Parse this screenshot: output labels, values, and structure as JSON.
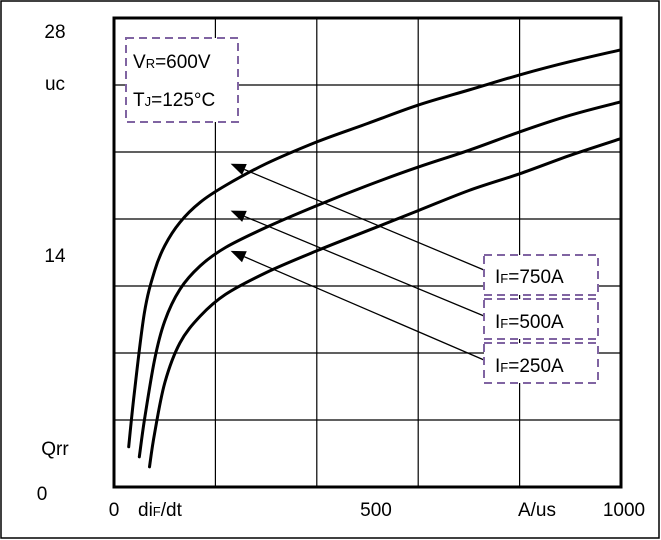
{
  "chart_data": {
    "type": "line",
    "xlabel": "diF/dt",
    "ylabel": "Qrr",
    "xlabel_parts": {
      "main": "di",
      "sub": "F",
      "rest": "/dt"
    },
    "x_unit": "A/us",
    "y_unit": "uc",
    "xlim": [
      0,
      1000
    ],
    "ylim": [
      0,
      28
    ],
    "x_tick_labels": [
      "0",
      "500",
      "1000"
    ],
    "y_tick_labels": [
      "0",
      "14",
      "28"
    ],
    "grid": true,
    "conditions": [
      {
        "id": "vr",
        "main": "V",
        "sub": "R",
        "rest": "=600V"
      },
      {
        "id": "tj",
        "main": "T",
        "sub": "J",
        "rest": "=125°C"
      }
    ],
    "series": [
      {
        "name": "IF=750A",
        "label": {
          "main": "I",
          "sub": "F",
          "rest": "=750A"
        },
        "x": [
          29,
          40,
          60,
          80,
          100,
          130,
          170,
          220,
          300,
          400,
          500,
          600,
          700,
          800,
          900,
          1000
        ],
        "y": [
          2.4,
          5.6,
          10.4,
          12.9,
          14.4,
          15.8,
          17.0,
          18.0,
          19.3,
          20.6,
          21.7,
          22.8,
          23.7,
          24.6,
          25.4,
          26.1
        ]
      },
      {
        "name": "IF=500A",
        "label": {
          "main": "I",
          "sub": "F",
          "rest": "=500A"
        },
        "x": [
          50,
          60,
          80,
          100,
          130,
          170,
          220,
          300,
          400,
          500,
          600,
          700,
          800,
          900,
          1000
        ],
        "y": [
          1.8,
          4.0,
          7.6,
          9.9,
          11.8,
          13.2,
          14.3,
          15.5,
          16.8,
          18.0,
          19.1,
          20.1,
          21.2,
          22.2,
          23.0
        ]
      },
      {
        "name": "IF=250A",
        "label": {
          "main": "I",
          "sub": "F",
          "rest": "=250A"
        },
        "x": [
          70,
          80,
          100,
          130,
          170,
          220,
          300,
          400,
          500,
          600,
          700,
          800,
          900,
          1000
        ],
        "y": [
          1.2,
          3.2,
          6.2,
          8.6,
          10.2,
          11.5,
          12.8,
          14.1,
          15.3,
          16.5,
          17.7,
          18.7,
          19.8,
          20.8
        ]
      }
    ],
    "annotations": [
      {
        "series": "IF=750A",
        "points_to": {
          "x": 230,
          "y": 19.3
        }
      },
      {
        "series": "IF=500A",
        "points_to": {
          "x": 230,
          "y": 16.5
        }
      },
      {
        "series": "IF=250A",
        "points_to": {
          "x": 230,
          "y": 14.1
        }
      }
    ],
    "colors": {
      "curve": "#000000",
      "grid": "#000000",
      "label_box_border": "#8064a2"
    }
  }
}
